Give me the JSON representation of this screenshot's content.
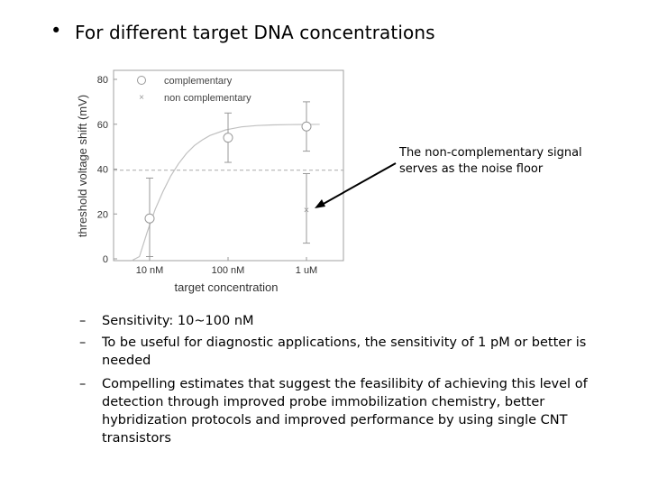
{
  "slide": {
    "bullet": "•",
    "title": "For different target DNA concentrations"
  },
  "annotation": {
    "line1": "The non-complementary signal",
    "line2": "serves as the noise floor"
  },
  "sub_bullets": [
    {
      "dash": "–",
      "text": "Sensitivity: 10~100 nM"
    },
    {
      "dash": "–",
      "text": "To be useful for diagnostic applications, the sensitivity of 1 pM or better is needed"
    },
    {
      "dash": "–",
      "text": "Compelling estimates that suggest the feasilibity of achieving this level of detection through improved probe immobilization chemistry, better hybridization protocols and improved performance by using single CNT transistors"
    }
  ],
  "chart_data": {
    "type": "scatter",
    "xlabel": "target concentration",
    "ylabel": "threshold voltage shift (mV)",
    "categories": [
      "10 nM",
      "100 nM",
      "1 uM"
    ],
    "y_ticks": [
      "0",
      "20",
      "40",
      "60",
      "80"
    ],
    "ylim": [
      0,
      80
    ],
    "grid": false,
    "legend_position": "top-left",
    "noise_floor": 39.5,
    "series": [
      {
        "name": "complementary",
        "marker": "circle",
        "color": "#999999",
        "values": [
          18,
          54,
          59
        ],
        "err_low": [
          1,
          43,
          48
        ],
        "err_high": [
          36,
          65,
          70
        ]
      },
      {
        "name": "non complementary",
        "marker": "x",
        "color": "#999999",
        "values": [
          null,
          null,
          22
        ],
        "err_low": [
          null,
          null,
          7
        ],
        "err_high": [
          null,
          null,
          38
        ]
      }
    ],
    "fit_curve": {
      "x": [
        0.0,
        0.1,
        0.2,
        0.3,
        0.4,
        0.5,
        0.6,
        0.7,
        0.8,
        0.9,
        1.0,
        1.2,
        1.4,
        1.6,
        1.8,
        2.0,
        2.2,
        2.4
      ],
      "y": [
        -10,
        1,
        12,
        22,
        30,
        37,
        42.5,
        47,
        50.5,
        53,
        55,
        57.5,
        58.8,
        59.4,
        59.7,
        59.8,
        59.9,
        60
      ]
    }
  }
}
